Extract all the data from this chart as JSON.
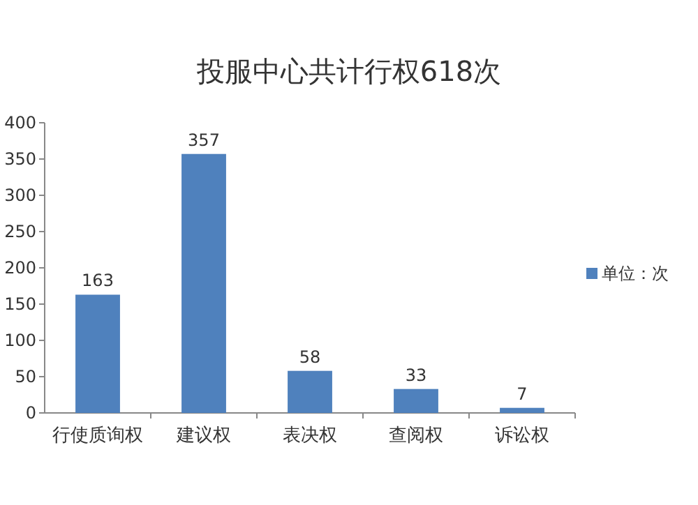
{
  "chart_data": {
    "type": "bar",
    "title": "投服中心共计行权618次",
    "categories": [
      "行使质询权",
      "建议权",
      "表决权",
      "查阅权",
      "诉讼权"
    ],
    "series": [
      {
        "name": "单位：次",
        "color": "#4f81bd",
        "values": [
          163,
          357,
          58,
          33,
          7
        ]
      }
    ],
    "ylim": [
      0,
      400
    ],
    "yticks": [
      0,
      50,
      100,
      150,
      200,
      250,
      300,
      350,
      400
    ],
    "data_labels": true,
    "legend": "right"
  }
}
